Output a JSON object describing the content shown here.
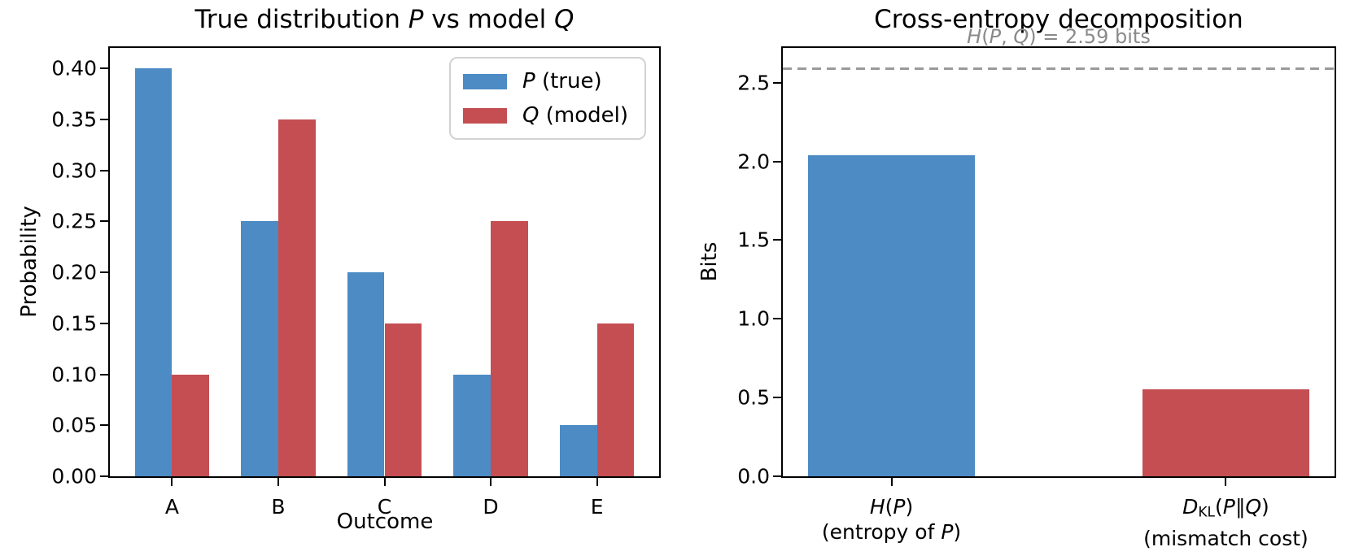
{
  "colors": {
    "p_blue": "#4c8bc4",
    "q_red": "#c44e52",
    "spine_black": "#000000",
    "dashed_gray": "#9a9a9a",
    "annotation_gray": "#8a8a8a"
  },
  "chart_data": [
    {
      "type": "bar",
      "title": "True distribution P vs model Q",
      "title_rich": [
        {
          "t": "True distribution "
        },
        {
          "t": "P",
          "i": 1
        },
        {
          "t": " vs model "
        },
        {
          "t": "Q",
          "i": 1
        }
      ],
      "xlabel": "Outcome",
      "ylabel": "Probability",
      "categories": [
        "A",
        "B",
        "C",
        "D",
        "E"
      ],
      "category_keys": [
        "a",
        "b",
        "c",
        "d",
        "e"
      ],
      "series": [
        {
          "name": "P (true)",
          "name_rich": [
            {
              "t": "P",
              "i": 1
            },
            {
              "t": " (true)"
            }
          ],
          "key": "p",
          "color": "#4c8bc4",
          "values": [
            0.4,
            0.25,
            0.2,
            0.1,
            0.05
          ]
        },
        {
          "name": "Q (model)",
          "name_rich": [
            {
              "t": "Q",
              "i": 1
            },
            {
              "t": " (model)"
            }
          ],
          "key": "q",
          "color": "#c44e52",
          "values": [
            0.1,
            0.35,
            0.15,
            0.25,
            0.15
          ]
        }
      ],
      "ylim": [
        0,
        0.42
      ],
      "yticks": [
        0,
        0.05,
        0.1,
        0.15,
        0.2,
        0.25,
        0.3,
        0.35,
        0.4
      ],
      "ytick_labels": [
        "0.00",
        "0.05",
        "0.10",
        "0.15",
        "0.20",
        "0.25",
        "0.30",
        "0.35",
        "0.40"
      ],
      "xlim": [
        -0.585,
        4.585
      ],
      "bar_width": 0.35,
      "grid": false,
      "legend": {
        "position": "upper right"
      }
    },
    {
      "type": "bar",
      "title": "Cross-entropy decomposition",
      "xlabel": "",
      "ylabel": "Bits",
      "categories": [
        "H(P) (entropy of P)",
        "Dᴋʟ(P∥Q) (mismatch cost)"
      ],
      "category_keys": [
        "hp",
        "dkl"
      ],
      "categories_rich": [
        [
          [
            {
              "t": "H",
              "i": 1
            },
            {
              "t": "("
            },
            {
              "t": "P",
              "i": 1
            },
            {
              "t": ")"
            }
          ],
          [
            {
              "t": "(entropy of "
            },
            {
              "t": "P",
              "i": 1
            },
            {
              "t": ")"
            }
          ]
        ],
        [
          [
            {
              "t": "D",
              "i": 1
            },
            {
              "t": "KL",
              "sub": 1
            },
            {
              "t": "("
            },
            {
              "t": "P",
              "i": 1
            },
            {
              "t": "∥"
            },
            {
              "t": "Q",
              "i": 1
            },
            {
              "t": ")"
            }
          ],
          [
            {
              "t": "(mismatch cost)"
            }
          ]
        ]
      ],
      "values": [
        2.04,
        0.55
      ],
      "bar_colors": [
        "#4c8bc4",
        "#c44e52"
      ],
      "ylim": [
        0,
        2.72
      ],
      "yticks": [
        0,
        0.5,
        1.0,
        1.5,
        2.0,
        2.5
      ],
      "ytick_labels": [
        "0.0",
        "0.5",
        "1.0",
        "1.5",
        "2.0",
        "2.5"
      ],
      "xlim": [
        -0.325,
        1.325
      ],
      "bar_width": 0.5,
      "grid": false,
      "hline": {
        "y": 2.59,
        "style": "dashed",
        "color": "#9a9a9a"
      },
      "annotation": {
        "text": "H(P, Q) = 2.59 bits",
        "rich": [
          {
            "t": "H",
            "i": 1
          },
          {
            "t": "("
          },
          {
            "t": "P",
            "i": 1
          },
          {
            "t": ", "
          },
          {
            "t": "Q",
            "i": 1
          },
          {
            "t": ") = 2.59 bits"
          }
        ],
        "color": "#8a8a8a"
      }
    }
  ]
}
